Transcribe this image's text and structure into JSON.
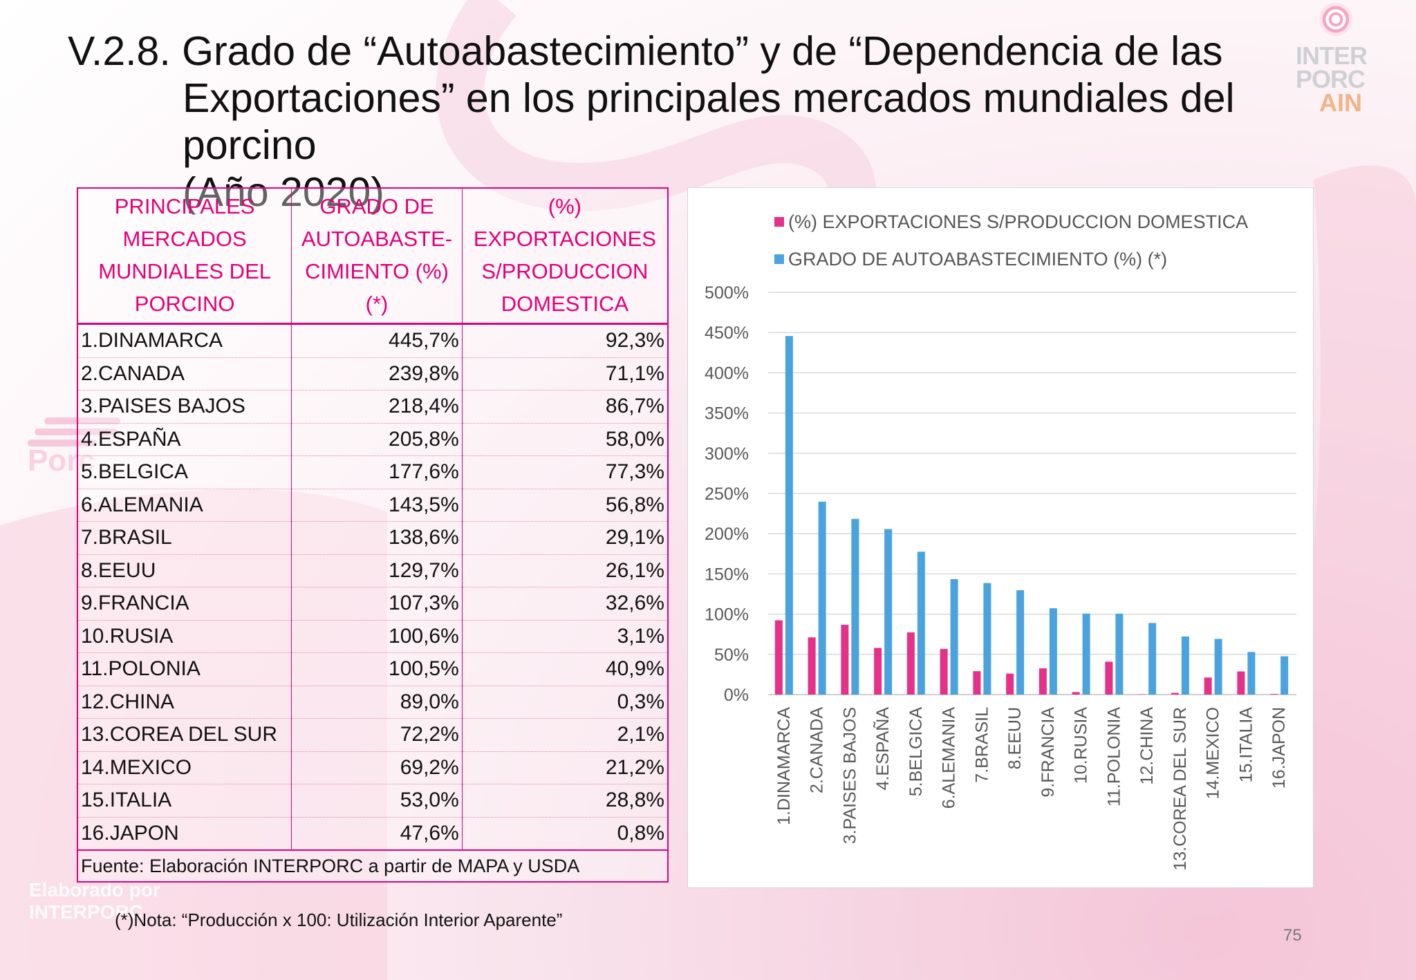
{
  "title": {
    "line1": "V.2.8. Grado de “Autoabastecimiento” y de “Dependencia de las",
    "line2": "Exportaciones” en los principales mercados mundiales del porcino",
    "line3": "(Año 2020)"
  },
  "logo": {
    "line1": "INTER",
    "line2": "PORC",
    "line3": "AIN"
  },
  "watermark": {
    "word": "Porc",
    "line1": "Elaborado por",
    "line2": "INTERPORC"
  },
  "table": {
    "headers": [
      [
        "PRINCIPALES",
        "MERCADOS",
        "MUNDIALES DEL",
        "PORCINO"
      ],
      [
        "GRADO DE",
        "AUTOABASTE-",
        "CIMIENTO (%)",
        "(*)"
      ],
      [
        "(%)",
        "EXPORTACIONES",
        "S/PRODUCCION",
        "DOMESTICA"
      ]
    ],
    "rows": [
      [
        "1.DINAMARCA",
        "445,7%",
        "92,3%"
      ],
      [
        "2.CANADA",
        "239,8%",
        "71,1%"
      ],
      [
        "3.PAISES BAJOS",
        "218,4%",
        "86,7%"
      ],
      [
        "4.ESPAÑA",
        "205,8%",
        "58,0%"
      ],
      [
        "5.BELGICA",
        "177,6%",
        "77,3%"
      ],
      [
        "6.ALEMANIA",
        "143,5%",
        "56,8%"
      ],
      [
        "7.BRASIL",
        "138,6%",
        "29,1%"
      ],
      [
        "8.EEUU",
        "129,7%",
        "26,1%"
      ],
      [
        "9.FRANCIA",
        "107,3%",
        "32,6%"
      ],
      [
        "10.RUSIA",
        "100,6%",
        "3,1%"
      ],
      [
        "11.POLONIA",
        "100,5%",
        "40,9%"
      ],
      [
        "12.CHINA",
        "89,0%",
        "0,3%"
      ],
      [
        "13.COREA DEL SUR",
        "72,2%",
        "2,1%"
      ],
      [
        "14.MEXICO",
        "69,2%",
        "21,2%"
      ],
      [
        "15.ITALIA",
        "53,0%",
        "28,8%"
      ],
      [
        "16.JAPON",
        "47,6%",
        "0,8%"
      ]
    ],
    "source": "Fuente: Elaboración INTERPORC  a partir de MAPA y USDA"
  },
  "note": "(*)Nota: “Producción x 100: Utilización Interior Aparente”",
  "page_number": "75",
  "chart_data": {
    "type": "bar",
    "categories": [
      "1.DINAMARCA",
      "2.CANADA",
      "3.PAISES BAJOS",
      "4.ESPAÑA",
      "5.BELGICA",
      "6.ALEMANIA",
      "7.BRASIL",
      "8.EEUU",
      "9.FRANCIA",
      "10.RUSIA",
      "11.POLONIA",
      "12.CHINA",
      "13.COREA DEL SUR",
      "14.MEXICO",
      "15.ITALIA",
      "16.JAPON"
    ],
    "series": [
      {
        "name": "(%) EXPORTACIONES S/PRODUCCION DOMESTICA",
        "color": "#e6318a",
        "values": [
          92.3,
          71.1,
          86.7,
          58.0,
          77.3,
          56.8,
          29.1,
          26.1,
          32.6,
          3.1,
          40.9,
          0.3,
          2.1,
          21.2,
          28.8,
          0.8
        ]
      },
      {
        "name": "GRADO DE AUTOABASTECIMIENTO (%) (*)",
        "color": "#4aa3df",
        "values": [
          445.7,
          239.8,
          218.4,
          205.8,
          177.6,
          143.5,
          138.6,
          129.7,
          107.3,
          100.6,
          100.5,
          89.0,
          72.2,
          69.2,
          53.0,
          47.6
        ]
      }
    ],
    "yticks": [
      "0%",
      "50%",
      "100%",
      "150%",
      "200%",
      "250%",
      "300%",
      "350%",
      "400%",
      "450%",
      "500%"
    ],
    "ylim": [
      0,
      500
    ],
    "grid": true,
    "legend_position": "top-left"
  }
}
